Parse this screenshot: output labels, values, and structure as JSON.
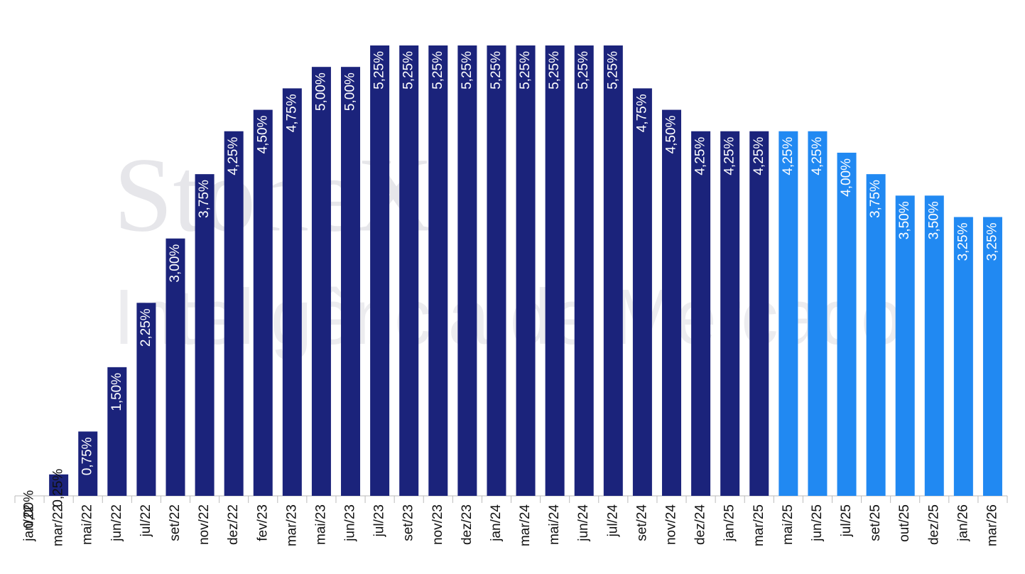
{
  "chart_data": {
    "type": "bar",
    "watermark": [
      "StoneX",
      "Inteligência de Mercado"
    ],
    "categories": [
      "jan/22",
      "mar/22",
      "mai/22",
      "jun/22",
      "jul/22",
      "set/22",
      "nov/22",
      "dez/22",
      "fev/23",
      "mar/23",
      "mai/23",
      "jun/23",
      "jul/23",
      "set/23",
      "nov/23",
      "dez/23",
      "jan/24",
      "mar/24",
      "mai/24",
      "jun/24",
      "jul/24",
      "set/24",
      "nov/24",
      "dez/24",
      "jan/25",
      "mar/25",
      "mai/25",
      "jun/25",
      "jul/25",
      "set/25",
      "out/25",
      "dez/25",
      "jan/26",
      "mar/26"
    ],
    "values": [
      0,
      0.25,
      0.75,
      1.5,
      2.25,
      3,
      3.75,
      4.25,
      4.5,
      4.75,
      5,
      5,
      5.25,
      5.25,
      5.25,
      5.25,
      5.25,
      5.25,
      5.25,
      5.25,
      5.25,
      4.75,
      4.5,
      4.25,
      4.25,
      4.25,
      4.25,
      4.25,
      4,
      3.75,
      3.5,
      3.5,
      3.25,
      3.25
    ],
    "value_labels": [
      "0,00%",
      "0,25%",
      "0,75%",
      "1,50%",
      "2,25%",
      "3,00%",
      "3,75%",
      "4,25%",
      "4,50%",
      "4,75%",
      "5,00%",
      "5,00%",
      "5,25%",
      "5,25%",
      "5,25%",
      "5,25%",
      "5,25%",
      "5,25%",
      "5,25%",
      "5,25%",
      "5,25%",
      "4,75%",
      "4,50%",
      "4,25%",
      "4,25%",
      "4,25%",
      "4,25%",
      "4,25%",
      "4,00%",
      "3,75%",
      "3,50%",
      "3,50%",
      "3,25%",
      "3,25%"
    ],
    "colors": [
      "#1b237b",
      "#1b237b",
      "#1b237b",
      "#1b237b",
      "#1b237b",
      "#1b237b",
      "#1b237b",
      "#1b237b",
      "#1b237b",
      "#1b237b",
      "#1b237b",
      "#1b237b",
      "#1b237b",
      "#1b237b",
      "#1b237b",
      "#1b237b",
      "#1b237b",
      "#1b237b",
      "#1b237b",
      "#1b237b",
      "#1b237b",
      "#1b237b",
      "#1b237b",
      "#1b237b",
      "#1b237b",
      "#1b237b",
      "#2189f2",
      "#2189f2",
      "#2189f2",
      "#2189f2",
      "#2189f2",
      "#2189f2",
      "#2189f2",
      "#2189f2"
    ]
  }
}
